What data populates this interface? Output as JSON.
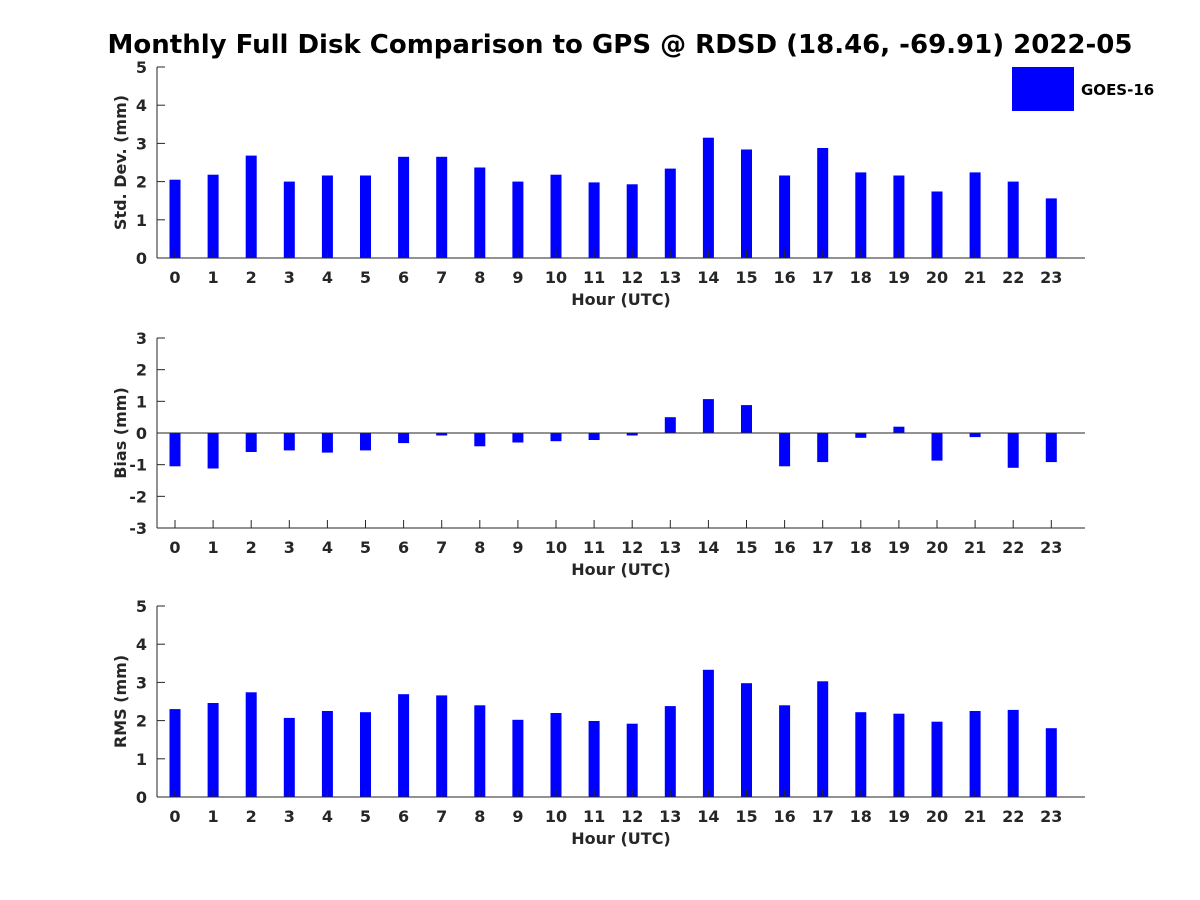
{
  "title": "Monthly Full Disk Comparison to GPS @ RDSD (18.46, -69.91) 2022-05",
  "colors": {
    "bar": "#0000ff",
    "axis": "#262626",
    "background": "#ffffff"
  },
  "legend": {
    "label": "GOES-16",
    "placement": "top-right"
  },
  "chart_data": [
    {
      "type": "bar",
      "categories": [
        "0",
        "1",
        "2",
        "3",
        "4",
        "5",
        "6",
        "7",
        "8",
        "9",
        "10",
        "11",
        "12",
        "13",
        "14",
        "15",
        "16",
        "17",
        "18",
        "19",
        "20",
        "21",
        "22",
        "23"
      ],
      "xlabel": "Hour (UTC)",
      "ylabel": "Std. Dev. (mm)",
      "ylim": [
        0,
        5
      ],
      "yticks": [
        0,
        1,
        2,
        3,
        4,
        5
      ],
      "grid": false,
      "series": [
        {
          "name": "GOES-16",
          "values": [
            2.05,
            2.18,
            2.68,
            2.0,
            2.16,
            2.16,
            2.65,
            2.65,
            2.37,
            2.0,
            2.18,
            1.98,
            1.93,
            2.34,
            3.15,
            2.84,
            2.16,
            2.88,
            2.24,
            2.16,
            1.74,
            2.24,
            2.0,
            1.56
          ]
        }
      ]
    },
    {
      "type": "bar",
      "categories": [
        "0",
        "1",
        "2",
        "3",
        "4",
        "5",
        "6",
        "7",
        "8",
        "9",
        "10",
        "11",
        "12",
        "13",
        "14",
        "15",
        "16",
        "17",
        "18",
        "19",
        "20",
        "21",
        "22",
        "23"
      ],
      "xlabel": "Hour (UTC)",
      "ylabel": "Bias (mm)",
      "ylim": [
        -3,
        3
      ],
      "yticks": [
        -3,
        -2,
        -1,
        0,
        1,
        2,
        3
      ],
      "grid": false,
      "series": [
        {
          "name": "GOES-16",
          "values": [
            -1.05,
            -1.12,
            -0.6,
            -0.55,
            -0.62,
            -0.55,
            -0.32,
            -0.08,
            -0.42,
            -0.3,
            -0.26,
            -0.22,
            -0.08,
            0.5,
            1.07,
            0.88,
            -1.05,
            -0.92,
            -0.15,
            0.2,
            -0.87,
            -0.13,
            -1.1,
            -0.92
          ]
        }
      ]
    },
    {
      "type": "bar",
      "categories": [
        "0",
        "1",
        "2",
        "3",
        "4",
        "5",
        "6",
        "7",
        "8",
        "9",
        "10",
        "11",
        "12",
        "13",
        "14",
        "15",
        "16",
        "17",
        "18",
        "19",
        "20",
        "21",
        "22",
        "23"
      ],
      "xlabel": "Hour (UTC)",
      "ylabel": "RMS (mm)",
      "ylim": [
        0,
        5
      ],
      "yticks": [
        0,
        1,
        2,
        3,
        4,
        5
      ],
      "grid": false,
      "series": [
        {
          "name": "GOES-16",
          "values": [
            2.3,
            2.46,
            2.74,
            2.07,
            2.25,
            2.22,
            2.69,
            2.66,
            2.4,
            2.02,
            2.2,
            1.99,
            1.92,
            2.38,
            3.33,
            2.98,
            2.4,
            3.03,
            2.22,
            2.18,
            1.97,
            2.25,
            2.28,
            1.8
          ]
        }
      ]
    }
  ]
}
